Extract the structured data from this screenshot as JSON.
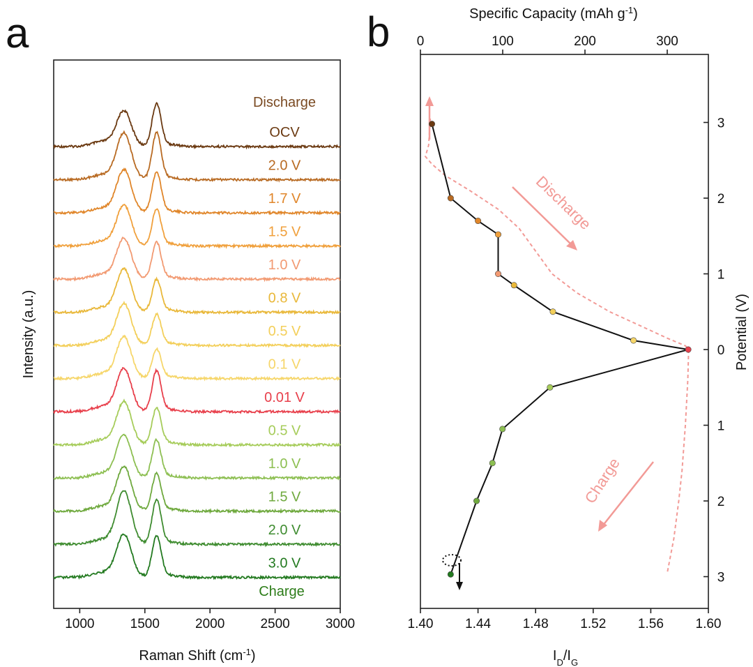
{
  "chart_data": [
    {
      "panel_label": "a",
      "type": "line",
      "title": "",
      "xlabel": "Raman Shift (cm",
      "xlabel_sup": "-1",
      "xlabel_suffix": ")",
      "ylabel": "Intensity (a.u.)",
      "xlim": [
        800,
        3000
      ],
      "xticks": [
        1000,
        1500,
        2000,
        2500,
        3000
      ],
      "header_label": {
        "text": "Discharge",
        "color": "#7a4a22"
      },
      "footer_label": {
        "text": "Charge",
        "color": "#2e7d1a"
      },
      "peaks": {
        "D_band": 1340,
        "G_band": 1590
      },
      "series": [
        {
          "name": "OCV",
          "color": "#6b3a12",
          "D": 0.7,
          "G": 0.82
        },
        {
          "name": "2.0 V",
          "color": "#b86a22",
          "D": 0.92,
          "G": 0.9
        },
        {
          "name": "1.7 V",
          "color": "#e0862a",
          "D": 0.85,
          "G": 0.78
        },
        {
          "name": "1.5 V",
          "color": "#f0a03c",
          "D": 0.8,
          "G": 0.7
        },
        {
          "name": "1.0 V",
          "color": "#f29a72",
          "D": 0.8,
          "G": 0.7
        },
        {
          "name": "0.8 V",
          "color": "#e9b83a",
          "D": 0.85,
          "G": 0.62
        },
        {
          "name": "0.5 V",
          "color": "#f3cf5a",
          "D": 0.82,
          "G": 0.58
        },
        {
          "name": "0.1 V",
          "color": "#f6d66a",
          "D": 0.82,
          "G": 0.55
        },
        {
          "name": "0.01 V",
          "color": "#e8404c",
          "D": 0.85,
          "G": 0.78
        },
        {
          "name": "0.5 V",
          "color": "#a6cc5a",
          "D": 0.85,
          "G": 0.7
        },
        {
          "name": "1.0 V",
          "color": "#8dbf52",
          "D": 0.85,
          "G": 0.72
        },
        {
          "name": "1.5 V",
          "color": "#6fa93e",
          "D": 0.88,
          "G": 0.72
        },
        {
          "name": "2.0 V",
          "color": "#3f8c30",
          "D": 1.05,
          "G": 0.85
        },
        {
          "name": "3.0 V",
          "color": "#237a20",
          "D": 0.85,
          "G": 0.8
        }
      ]
    },
    {
      "panel_label": "b",
      "type": "line",
      "title": "",
      "xlabel": "I",
      "xlabel_sub1": "D",
      "xlabel_mid": "/I",
      "xlabel_sub2": "G",
      "xlim": [
        1.4,
        1.6
      ],
      "xticks": [
        "1.40",
        "1.44",
        "1.48",
        "1.52",
        "1.56",
        "1.60"
      ],
      "top_xlabel": "Specific Capacity (mAh g",
      "top_xlabel_sup": "-1",
      "top_xlabel_suffix": ")",
      "top_xlim": [
        0,
        350
      ],
      "top_xticks": [
        0,
        100,
        200,
        300
      ],
      "right_ylabel": "Potential (V)",
      "right_yticks": [
        {
          "label": "3",
          "v": 3
        },
        {
          "label": "2",
          "v": 2
        },
        {
          "label": "1",
          "v": 1
        },
        {
          "label": "0",
          "v": 0
        },
        {
          "label": "1",
          "v": -1
        },
        {
          "label": "2",
          "v": -2
        },
        {
          "label": "3",
          "v": -3
        }
      ],
      "ratio_series": {
        "name": "I_D/I_G",
        "color": "#111111",
        "points": [
          {
            "x": 1.408,
            "v": 2.98,
            "color": "#6b3a12"
          },
          {
            "x": 1.421,
            "v": 2.0,
            "color": "#b86a22"
          },
          {
            "x": 1.44,
            "v": 1.7,
            "color": "#e0862a"
          },
          {
            "x": 1.454,
            "v": 1.52,
            "color": "#f0a03c"
          },
          {
            "x": 1.454,
            "v": 1.0,
            "color": "#f29a72"
          },
          {
            "x": 1.465,
            "v": 0.85,
            "color": "#e9b83a"
          },
          {
            "x": 1.492,
            "v": 0.5,
            "color": "#f3cf5a"
          },
          {
            "x": 1.548,
            "v": 0.12,
            "color": "#f6d66a"
          },
          {
            "x": 1.586,
            "v": 0.0,
            "color": "#e8404c"
          },
          {
            "x": 1.49,
            "v": -0.5,
            "color": "#a6cc5a"
          },
          {
            "x": 1.457,
            "v": -1.05,
            "color": "#8dbf52"
          },
          {
            "x": 1.45,
            "v": -1.5,
            "color": "#8dbf52"
          },
          {
            "x": 1.439,
            "v": -2.0,
            "color": "#6fa93e"
          },
          {
            "x": 1.421,
            "v": -2.97,
            "color": "#237a20"
          }
        ]
      },
      "capacity_discharge": {
        "color": "#f29a96",
        "points": [
          [
            12,
            3.05
          ],
          [
            10,
            2.7
          ],
          [
            6,
            2.55
          ],
          [
            14,
            2.45
          ],
          [
            30,
            2.3
          ],
          [
            60,
            2.1
          ],
          [
            95,
            1.85
          ],
          [
            120,
            1.6
          ],
          [
            140,
            1.3
          ],
          [
            160,
            1.0
          ],
          [
            190,
            0.75
          ],
          [
            230,
            0.5
          ],
          [
            270,
            0.3
          ],
          [
            300,
            0.15
          ],
          [
            322,
            0.05
          ],
          [
            326,
            0.0
          ]
        ]
      },
      "capacity_charge": {
        "color": "#f29a96",
        "points": [
          [
            326,
            0.0
          ],
          [
            325,
            -0.4
          ],
          [
            322,
            -1.0
          ],
          [
            318,
            -1.6
          ],
          [
            314,
            -2.0
          ],
          [
            308,
            -2.5
          ],
          [
            300,
            -2.95
          ]
        ]
      },
      "annotations": [
        {
          "text": "Discharge",
          "color": "#f29a96"
        },
        {
          "text": "Charge",
          "color": "#f29a96"
        }
      ]
    }
  ]
}
